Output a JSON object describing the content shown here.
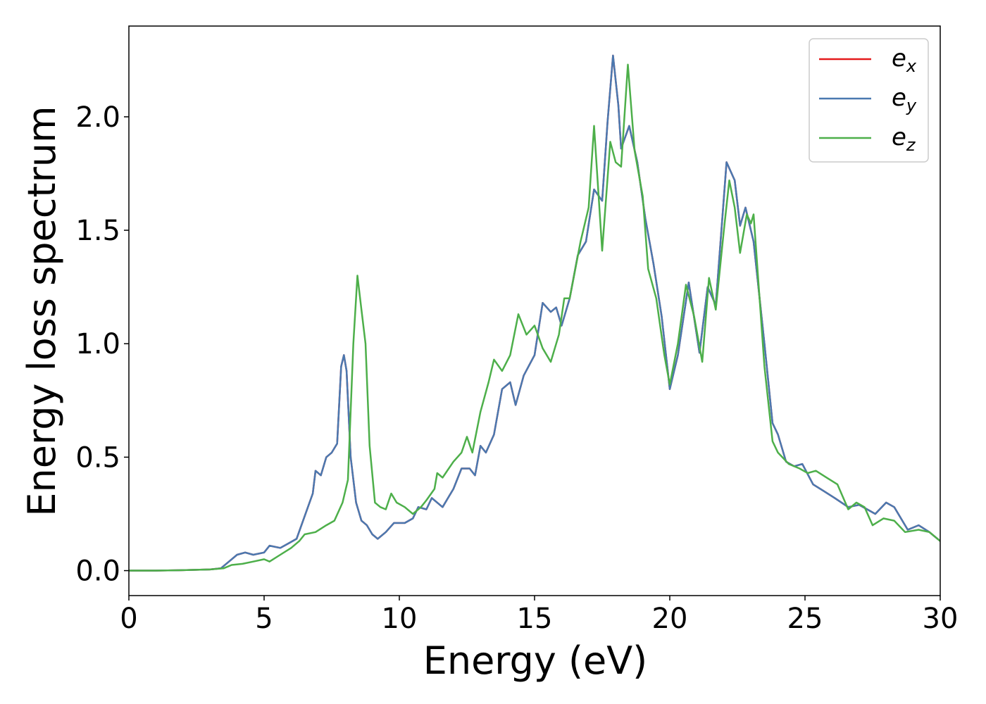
{
  "chart_data": {
    "type": "line",
    "title": "",
    "xlabel": "Energy (eV)",
    "ylabel": "Energy loss spectrum",
    "xlim": [
      0,
      30
    ],
    "ylim": [
      -0.11,
      2.4
    ],
    "xticks": [
      0,
      5,
      10,
      15,
      20,
      25,
      30
    ],
    "xtick_labels": [
      "0",
      "5",
      "10",
      "15",
      "20",
      "25",
      "30"
    ],
    "yticks": [
      0.0,
      0.5,
      1.0,
      1.5,
      2.0
    ],
    "ytick_labels": [
      "0.0",
      "0.5",
      "1.0",
      "1.5",
      "2.0"
    ],
    "grid": false,
    "legend_position": "top-right",
    "series": [
      {
        "name": "e_x",
        "label_main": "e",
        "label_sub": "x",
        "color": "#e41a1c",
        "points": [
          [
            0,
            0.0
          ],
          [
            1,
            0.0
          ],
          [
            2,
            0.002
          ],
          [
            3,
            0.005
          ],
          [
            3.4,
            0.01
          ],
          [
            3.7,
            0.04
          ],
          [
            4.0,
            0.07
          ],
          [
            4.3,
            0.08
          ],
          [
            4.6,
            0.07
          ],
          [
            5.0,
            0.08
          ],
          [
            5.2,
            0.11
          ],
          [
            5.6,
            0.1
          ],
          [
            5.9,
            0.12
          ],
          [
            6.2,
            0.14
          ],
          [
            6.5,
            0.24
          ],
          [
            6.8,
            0.34
          ],
          [
            6.9,
            0.44
          ],
          [
            7.1,
            0.42
          ],
          [
            7.3,
            0.5
          ],
          [
            7.5,
            0.52
          ],
          [
            7.7,
            0.56
          ],
          [
            7.85,
            0.9
          ],
          [
            7.95,
            0.95
          ],
          [
            8.05,
            0.88
          ],
          [
            8.2,
            0.5
          ],
          [
            8.4,
            0.3
          ],
          [
            8.6,
            0.22
          ],
          [
            8.8,
            0.2
          ],
          [
            9.0,
            0.16
          ],
          [
            9.2,
            0.14
          ],
          [
            9.5,
            0.17
          ],
          [
            9.8,
            0.21
          ],
          [
            10.2,
            0.21
          ],
          [
            10.5,
            0.23
          ],
          [
            10.7,
            0.28
          ],
          [
            11.0,
            0.27
          ],
          [
            11.2,
            0.32
          ],
          [
            11.6,
            0.28
          ],
          [
            12.0,
            0.36
          ],
          [
            12.3,
            0.45
          ],
          [
            12.6,
            0.45
          ],
          [
            12.8,
            0.42
          ],
          [
            13.0,
            0.55
          ],
          [
            13.2,
            0.52
          ],
          [
            13.5,
            0.6
          ],
          [
            13.8,
            0.8
          ],
          [
            14.1,
            0.83
          ],
          [
            14.3,
            0.73
          ],
          [
            14.6,
            0.86
          ],
          [
            15.0,
            0.95
          ],
          [
            15.3,
            1.18
          ],
          [
            15.6,
            1.14
          ],
          [
            15.8,
            1.16
          ],
          [
            16.0,
            1.08
          ],
          [
            16.3,
            1.2
          ],
          [
            16.6,
            1.39
          ],
          [
            16.9,
            1.45
          ],
          [
            17.2,
            1.68
          ],
          [
            17.5,
            1.63
          ],
          [
            17.7,
            1.98
          ],
          [
            17.9,
            2.27
          ],
          [
            18.1,
            2.05
          ],
          [
            18.2,
            1.86
          ],
          [
            18.5,
            1.96
          ],
          [
            18.8,
            1.8
          ],
          [
            19.1,
            1.55
          ],
          [
            19.4,
            1.35
          ],
          [
            19.7,
            1.12
          ],
          [
            20.0,
            0.8
          ],
          [
            20.3,
            0.95
          ],
          [
            20.7,
            1.27
          ],
          [
            21.1,
            0.96
          ],
          [
            21.4,
            1.25
          ],
          [
            21.7,
            1.17
          ],
          [
            22.1,
            1.8
          ],
          [
            22.4,
            1.72
          ],
          [
            22.6,
            1.52
          ],
          [
            22.8,
            1.6
          ],
          [
            23.1,
            1.45
          ],
          [
            23.5,
            1.0
          ],
          [
            23.8,
            0.65
          ],
          [
            24.0,
            0.6
          ],
          [
            24.3,
            0.48
          ],
          [
            24.6,
            0.46
          ],
          [
            24.9,
            0.47
          ],
          [
            25.3,
            0.38
          ],
          [
            25.7,
            0.35
          ],
          [
            26.1,
            0.32
          ],
          [
            26.6,
            0.28
          ],
          [
            27.0,
            0.29
          ],
          [
            27.3,
            0.27
          ],
          [
            27.6,
            0.25
          ],
          [
            28.0,
            0.3
          ],
          [
            28.3,
            0.28
          ],
          [
            28.8,
            0.18
          ],
          [
            29.2,
            0.2
          ],
          [
            29.6,
            0.17
          ],
          [
            30,
            0.13
          ]
        ]
      },
      {
        "name": "e_y",
        "label_main": "e",
        "label_sub": "y",
        "color": "#4a79b0",
        "points": [
          [
            0,
            0.0
          ],
          [
            1,
            0.0
          ],
          [
            2,
            0.002
          ],
          [
            3,
            0.005
          ],
          [
            3.4,
            0.01
          ],
          [
            3.7,
            0.04
          ],
          [
            4.0,
            0.07
          ],
          [
            4.3,
            0.08
          ],
          [
            4.6,
            0.07
          ],
          [
            5.0,
            0.08
          ],
          [
            5.2,
            0.11
          ],
          [
            5.6,
            0.1
          ],
          [
            5.9,
            0.12
          ],
          [
            6.2,
            0.14
          ],
          [
            6.5,
            0.24
          ],
          [
            6.8,
            0.34
          ],
          [
            6.9,
            0.44
          ],
          [
            7.1,
            0.42
          ],
          [
            7.3,
            0.5
          ],
          [
            7.5,
            0.52
          ],
          [
            7.7,
            0.56
          ],
          [
            7.85,
            0.9
          ],
          [
            7.95,
            0.95
          ],
          [
            8.05,
            0.88
          ],
          [
            8.2,
            0.5
          ],
          [
            8.4,
            0.3
          ],
          [
            8.6,
            0.22
          ],
          [
            8.8,
            0.2
          ],
          [
            9.0,
            0.16
          ],
          [
            9.2,
            0.14
          ],
          [
            9.5,
            0.17
          ],
          [
            9.8,
            0.21
          ],
          [
            10.2,
            0.21
          ],
          [
            10.5,
            0.23
          ],
          [
            10.7,
            0.28
          ],
          [
            11.0,
            0.27
          ],
          [
            11.2,
            0.32
          ],
          [
            11.6,
            0.28
          ],
          [
            12.0,
            0.36
          ],
          [
            12.3,
            0.45
          ],
          [
            12.6,
            0.45
          ],
          [
            12.8,
            0.42
          ],
          [
            13.0,
            0.55
          ],
          [
            13.2,
            0.52
          ],
          [
            13.5,
            0.6
          ],
          [
            13.8,
            0.8
          ],
          [
            14.1,
            0.83
          ],
          [
            14.3,
            0.73
          ],
          [
            14.6,
            0.86
          ],
          [
            15.0,
            0.95
          ],
          [
            15.3,
            1.18
          ],
          [
            15.6,
            1.14
          ],
          [
            15.8,
            1.16
          ],
          [
            16.0,
            1.08
          ],
          [
            16.3,
            1.2
          ],
          [
            16.6,
            1.39
          ],
          [
            16.9,
            1.45
          ],
          [
            17.2,
            1.68
          ],
          [
            17.5,
            1.63
          ],
          [
            17.7,
            1.98
          ],
          [
            17.9,
            2.27
          ],
          [
            18.1,
            2.05
          ],
          [
            18.2,
            1.86
          ],
          [
            18.5,
            1.96
          ],
          [
            18.8,
            1.8
          ],
          [
            19.1,
            1.55
          ],
          [
            19.4,
            1.35
          ],
          [
            19.7,
            1.12
          ],
          [
            20.0,
            0.8
          ],
          [
            20.3,
            0.95
          ],
          [
            20.7,
            1.27
          ],
          [
            21.1,
            0.96
          ],
          [
            21.4,
            1.25
          ],
          [
            21.7,
            1.17
          ],
          [
            22.1,
            1.8
          ],
          [
            22.4,
            1.72
          ],
          [
            22.6,
            1.52
          ],
          [
            22.8,
            1.6
          ],
          [
            23.1,
            1.45
          ],
          [
            23.5,
            1.0
          ],
          [
            23.8,
            0.65
          ],
          [
            24.0,
            0.6
          ],
          [
            24.3,
            0.48
          ],
          [
            24.6,
            0.46
          ],
          [
            24.9,
            0.47
          ],
          [
            25.3,
            0.38
          ],
          [
            25.7,
            0.35
          ],
          [
            26.1,
            0.32
          ],
          [
            26.6,
            0.28
          ],
          [
            27.0,
            0.29
          ],
          [
            27.3,
            0.27
          ],
          [
            27.6,
            0.25
          ],
          [
            28.0,
            0.3
          ],
          [
            28.3,
            0.28
          ],
          [
            28.8,
            0.18
          ],
          [
            29.2,
            0.2
          ],
          [
            29.6,
            0.17
          ],
          [
            30,
            0.13
          ]
        ]
      },
      {
        "name": "e_z",
        "label_main": "e",
        "label_sub": "z",
        "color": "#4daf4a",
        "points": [
          [
            0,
            0.0
          ],
          [
            1,
            0.0
          ],
          [
            2,
            0.002
          ],
          [
            3,
            0.005
          ],
          [
            3.5,
            0.01
          ],
          [
            3.8,
            0.025
          ],
          [
            4.2,
            0.03
          ],
          [
            4.6,
            0.04
          ],
          [
            5.0,
            0.05
          ],
          [
            5.2,
            0.04
          ],
          [
            5.6,
            0.07
          ],
          [
            6.0,
            0.1
          ],
          [
            6.3,
            0.13
          ],
          [
            6.5,
            0.16
          ],
          [
            6.9,
            0.17
          ],
          [
            7.3,
            0.2
          ],
          [
            7.6,
            0.22
          ],
          [
            7.9,
            0.3
          ],
          [
            8.1,
            0.4
          ],
          [
            8.3,
            1.0
          ],
          [
            8.45,
            1.3
          ],
          [
            8.6,
            1.15
          ],
          [
            8.75,
            1.0
          ],
          [
            8.9,
            0.55
          ],
          [
            9.1,
            0.3
          ],
          [
            9.3,
            0.28
          ],
          [
            9.5,
            0.27
          ],
          [
            9.7,
            0.34
          ],
          [
            9.9,
            0.3
          ],
          [
            10.2,
            0.28
          ],
          [
            10.5,
            0.25
          ],
          [
            10.8,
            0.28
          ],
          [
            11.0,
            0.31
          ],
          [
            11.3,
            0.36
          ],
          [
            11.4,
            0.43
          ],
          [
            11.6,
            0.41
          ],
          [
            12.0,
            0.48
          ],
          [
            12.3,
            0.52
          ],
          [
            12.5,
            0.59
          ],
          [
            12.7,
            0.52
          ],
          [
            13.0,
            0.7
          ],
          [
            13.3,
            0.83
          ],
          [
            13.5,
            0.93
          ],
          [
            13.8,
            0.88
          ],
          [
            14.1,
            0.95
          ],
          [
            14.4,
            1.13
          ],
          [
            14.7,
            1.04
          ],
          [
            15.0,
            1.08
          ],
          [
            15.3,
            0.98
          ],
          [
            15.6,
            0.92
          ],
          [
            15.9,
            1.04
          ],
          [
            16.1,
            1.2
          ],
          [
            16.3,
            1.2
          ],
          [
            16.7,
            1.45
          ],
          [
            17.0,
            1.6
          ],
          [
            17.2,
            1.96
          ],
          [
            17.5,
            1.41
          ],
          [
            17.8,
            1.89
          ],
          [
            18.0,
            1.8
          ],
          [
            18.2,
            1.78
          ],
          [
            18.45,
            2.23
          ],
          [
            18.7,
            1.85
          ],
          [
            19.0,
            1.65
          ],
          [
            19.2,
            1.33
          ],
          [
            19.5,
            1.2
          ],
          [
            19.8,
            0.95
          ],
          [
            20.0,
            0.82
          ],
          [
            20.3,
            1.0
          ],
          [
            20.6,
            1.26
          ],
          [
            20.9,
            1.12
          ],
          [
            21.2,
            0.92
          ],
          [
            21.45,
            1.29
          ],
          [
            21.7,
            1.15
          ],
          [
            22.0,
            1.5
          ],
          [
            22.2,
            1.72
          ],
          [
            22.4,
            1.6
          ],
          [
            22.6,
            1.4
          ],
          [
            22.85,
            1.57
          ],
          [
            23.0,
            1.53
          ],
          [
            23.1,
            1.57
          ],
          [
            23.5,
            0.9
          ],
          [
            23.8,
            0.57
          ],
          [
            24.0,
            0.52
          ],
          [
            24.4,
            0.47
          ],
          [
            24.8,
            0.45
          ],
          [
            25.1,
            0.43
          ],
          [
            25.4,
            0.44
          ],
          [
            25.8,
            0.41
          ],
          [
            26.2,
            0.38
          ],
          [
            26.6,
            0.27
          ],
          [
            26.9,
            0.3
          ],
          [
            27.2,
            0.28
          ],
          [
            27.5,
            0.2
          ],
          [
            27.9,
            0.23
          ],
          [
            28.3,
            0.22
          ],
          [
            28.7,
            0.17
          ],
          [
            29.2,
            0.18
          ],
          [
            29.6,
            0.17
          ],
          [
            30,
            0.13
          ]
        ]
      }
    ]
  }
}
